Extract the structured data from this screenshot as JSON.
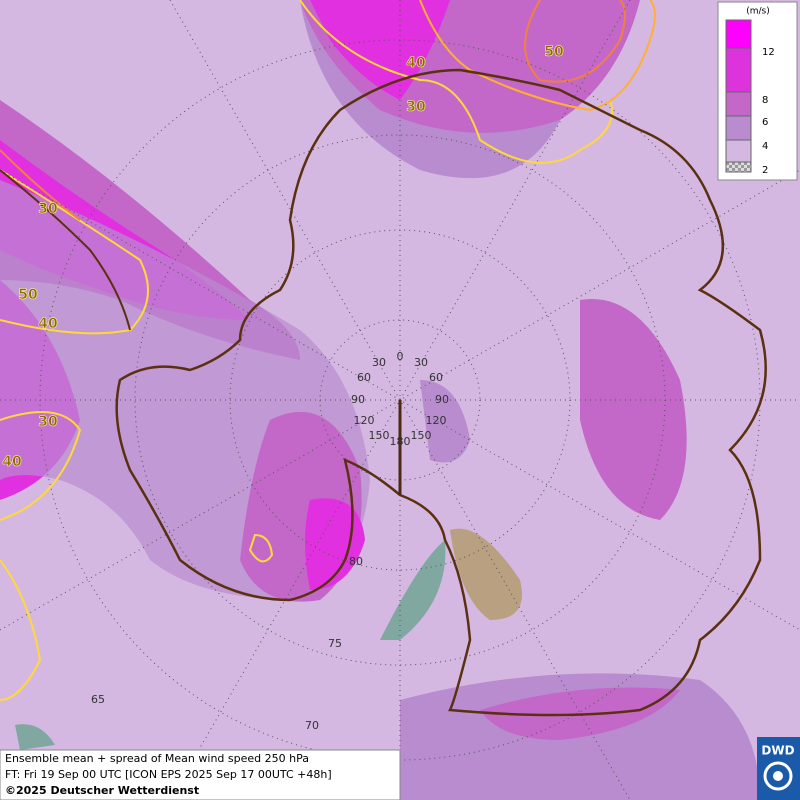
{
  "legend": {
    "unit": "(m/s)",
    "levels": [
      12,
      8,
      6,
      4,
      2
    ]
  },
  "contour_labels": [
    40,
    30,
    50,
    30,
    50,
    40,
    30,
    40
  ],
  "graticule": {
    "longitude_labels": [
      0,
      30,
      30,
      60,
      60,
      90,
      90,
      120,
      120,
      150,
      150,
      180
    ],
    "latitude_labels": [
      80,
      75,
      70,
      65
    ]
  },
  "footer": {
    "line1": "Ensemble mean + spread of Mean wind speed 250 hPa",
    "line2": "FT: Fri 19 Sep 00 UTC [ICON EPS 2025 Sep 17 00UTC +48h]",
    "line3": "©2025 Deutscher Wetterdienst"
  },
  "logo": "DWD"
}
